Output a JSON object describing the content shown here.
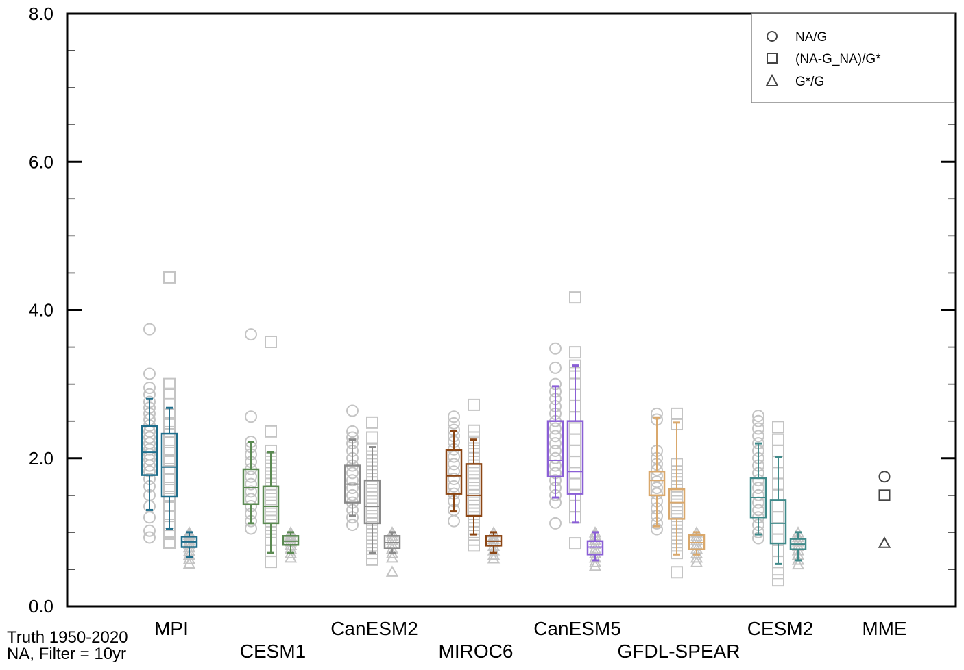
{
  "chart_data": {
    "type": "box",
    "title": "",
    "xlabel": "",
    "ylabel": "",
    "ylim": [
      0,
      8
    ],
    "yticks": [
      "0.0",
      "2.0",
      "4.0",
      "6.0",
      "8.0"
    ],
    "grid": false,
    "legend": {
      "location": "top-right",
      "entries": [
        {
          "marker": "circle",
          "label": "NA/G"
        },
        {
          "marker": "square",
          "label": "(NA-G_NA)/G*"
        },
        {
          "marker": "triangle",
          "label": "G*/G"
        }
      ]
    },
    "note": [
      "Truth 1950-2020",
      "NA, Filter = 10yr"
    ],
    "models": [
      {
        "name": "MPI",
        "color": "#1f6e8c",
        "label_row": "top",
        "boxes": [
          {
            "metric": "NA/G",
            "whisker_low": 1.3,
            "q1": 1.77,
            "median": 2.08,
            "q3": 2.43,
            "whisker_high": 2.8
          },
          {
            "metric": "(NA-G_NA)/G*",
            "whisker_low": 1.05,
            "q1": 1.48,
            "median": 1.88,
            "q3": 2.33,
            "whisker_high": 2.68
          },
          {
            "metric": "G*/G",
            "whisker_low": 0.67,
            "q1": 0.8,
            "median": 0.87,
            "q3": 0.94,
            "whisker_high": 1.0
          }
        ],
        "members": [
          [
            0.93,
            1.02,
            1.2,
            1.35,
            1.5,
            1.62,
            1.72,
            1.82,
            1.9,
            1.98,
            2.05,
            2.12,
            2.2,
            2.28,
            2.36,
            2.44,
            2.52,
            2.6,
            2.68,
            2.76,
            2.86,
            2.95,
            3.14,
            3.74
          ],
          [
            0.86,
            0.98,
            1.1,
            1.22,
            1.35,
            1.48,
            1.6,
            1.72,
            1.85,
            1.97,
            2.1,
            2.22,
            2.35,
            2.47,
            2.6,
            2.73,
            2.87,
            3.0,
            4.44
          ],
          [
            0.58,
            0.64,
            0.7,
            0.75,
            0.8,
            0.85,
            0.89,
            0.93,
            0.97,
            1.0
          ]
        ]
      },
      {
        "name": "CESM1",
        "color": "#5b8a52",
        "label_row": "bottom",
        "boxes": [
          {
            "metric": "NA/G",
            "whisker_low": 1.12,
            "q1": 1.38,
            "median": 1.6,
            "q3": 1.85,
            "whisker_high": 2.22
          },
          {
            "metric": "(NA-G_NA)/G*",
            "whisker_low": 0.72,
            "q1": 1.12,
            "median": 1.35,
            "q3": 1.62,
            "whisker_high": 2.08
          },
          {
            "metric": "G*/G",
            "whisker_low": 0.72,
            "q1": 0.83,
            "median": 0.88,
            "q3": 0.95,
            "whisker_high": 1.0
          }
        ],
        "members": [
          [
            1.05,
            1.15,
            1.25,
            1.35,
            1.45,
            1.55,
            1.65,
            1.75,
            1.85,
            1.95,
            2.05,
            2.15,
            2.22,
            2.56,
            3.67
          ],
          [
            0.6,
            0.75,
            0.9,
            1.0,
            1.1,
            1.2,
            1.3,
            1.4,
            1.5,
            1.6,
            1.7,
            1.8,
            1.9,
            2.0,
            2.1,
            2.36,
            3.57
          ],
          [
            0.66,
            0.72,
            0.78,
            0.83,
            0.88,
            0.92,
            0.96,
            1.0
          ]
        ]
      },
      {
        "name": "CanESM2",
        "color": "#8a8a8a",
        "label_row": "top",
        "boxes": [
          {
            "metric": "NA/G",
            "whisker_low": 1.22,
            "q1": 1.4,
            "median": 1.65,
            "q3": 1.9,
            "whisker_high": 2.25
          },
          {
            "metric": "(NA-G_NA)/G*",
            "whisker_low": 0.72,
            "q1": 1.12,
            "median": 1.35,
            "q3": 1.7,
            "whisker_high": 2.15
          },
          {
            "metric": "G*/G",
            "whisker_low": 0.72,
            "q1": 0.78,
            "median": 0.86,
            "q3": 0.95,
            "whisker_high": 1.0
          }
        ],
        "members": [
          [
            1.1,
            1.2,
            1.3,
            1.4,
            1.5,
            1.6,
            1.7,
            1.8,
            1.9,
            2.0,
            2.1,
            2.2,
            2.28,
            2.36,
            2.64
          ],
          [
            0.63,
            0.72,
            0.82,
            0.92,
            1.02,
            1.12,
            1.22,
            1.32,
            1.42,
            1.52,
            1.62,
            1.72,
            1.82,
            1.92,
            2.02,
            2.12,
            2.28,
            2.48
          ],
          [
            0.47,
            0.66,
            0.72,
            0.78,
            0.84,
            0.9,
            0.95,
            1.0
          ]
        ]
      },
      {
        "name": "MIROC6",
        "color": "#8b4513",
        "label_row": "bottom",
        "boxes": [
          {
            "metric": "NA/G",
            "whisker_low": 1.28,
            "q1": 1.52,
            "median": 1.76,
            "q3": 2.11,
            "whisker_high": 2.37
          },
          {
            "metric": "(NA-G_NA)/G*",
            "whisker_low": 0.97,
            "q1": 1.22,
            "median": 1.5,
            "q3": 1.92,
            "whisker_high": 2.25
          },
          {
            "metric": "G*/G",
            "whisker_low": 0.72,
            "q1": 0.82,
            "median": 0.88,
            "q3": 0.95,
            "whisker_high": 1.0
          }
        ],
        "members": [
          [
            1.15,
            1.3,
            1.42,
            1.52,
            1.62,
            1.72,
            1.82,
            1.92,
            2.02,
            2.12,
            2.22,
            2.3,
            2.38,
            2.47,
            2.56
          ],
          [
            0.82,
            0.9,
            1.0,
            1.1,
            1.2,
            1.3,
            1.4,
            1.5,
            1.6,
            1.7,
            1.8,
            1.9,
            2.0,
            2.1,
            2.2,
            2.28,
            2.37,
            2.72
          ],
          [
            0.65,
            0.7,
            0.76,
            0.82,
            0.87,
            0.91,
            0.95,
            1.0
          ]
        ]
      },
      {
        "name": "CanESM5",
        "color": "#8a5fd6",
        "label_row": "top",
        "boxes": [
          {
            "metric": "NA/G",
            "whisker_low": 1.47,
            "q1": 1.75,
            "median": 1.97,
            "q3": 2.5,
            "whisker_high": 2.97
          },
          {
            "metric": "(NA-G_NA)/G*",
            "whisker_low": 1.13,
            "q1": 1.52,
            "median": 1.82,
            "q3": 2.5,
            "whisker_high": 3.25
          },
          {
            "metric": "G*/G",
            "whisker_low": 0.62,
            "q1": 0.7,
            "median": 0.8,
            "q3": 0.88,
            "whisker_high": 1.0
          }
        ],
        "members": [
          [
            1.12,
            1.4,
            1.5,
            1.6,
            1.7,
            1.8,
            1.9,
            2.0,
            2.1,
            2.2,
            2.3,
            2.4,
            2.5,
            2.6,
            2.7,
            2.8,
            2.9,
            3.0,
            3.22,
            3.48
          ],
          [
            0.85,
            1.2,
            1.35,
            1.5,
            1.65,
            1.8,
            1.95,
            2.1,
            2.25,
            2.4,
            2.55,
            2.7,
            2.85,
            3.0,
            3.15,
            3.25,
            3.43,
            4.17
          ],
          [
            0.55,
            0.6,
            0.66,
            0.72,
            0.78,
            0.84,
            0.9,
            0.96,
            1.0
          ]
        ]
      },
      {
        "name": "GFDL-SPEAR",
        "color": "#d9a86c",
        "label_row": "bottom",
        "boxes": [
          {
            "metric": "NA/G",
            "whisker_low": 1.08,
            "q1": 1.5,
            "median": 1.7,
            "q3": 1.82,
            "whisker_high": 2.55
          },
          {
            "metric": "(NA-G_NA)/G*",
            "whisker_low": 0.7,
            "q1": 1.18,
            "median": 1.4,
            "q3": 1.58,
            "whisker_high": 2.48
          },
          {
            "metric": "G*/G",
            "whisker_low": 0.7,
            "q1": 0.77,
            "median": 0.86,
            "q3": 0.96,
            "whisker_high": 1.0
          }
        ],
        "members": [
          [
            1.04,
            1.12,
            1.22,
            1.32,
            1.42,
            1.52,
            1.6,
            1.68,
            1.76,
            1.84,
            1.92,
            2.0,
            2.1,
            2.52,
            2.6
          ],
          [
            0.46,
            0.72,
            0.82,
            0.92,
            1.02,
            1.12,
            1.22,
            1.32,
            1.42,
            1.52,
            1.62,
            1.72,
            1.82,
            1.92,
            2.46,
            2.6
          ],
          [
            0.6,
            0.66,
            0.72,
            0.78,
            0.84,
            0.9,
            0.95,
            1.0
          ]
        ]
      },
      {
        "name": "CESM2",
        "color": "#3f8a8a",
        "label_row": "top",
        "boxes": [
          {
            "metric": "NA/G",
            "whisker_low": 0.97,
            "q1": 1.2,
            "median": 1.47,
            "q3": 1.73,
            "whisker_high": 2.2
          },
          {
            "metric": "(NA-G_NA)/G*",
            "whisker_low": 0.57,
            "q1": 0.85,
            "median": 1.12,
            "q3": 1.43,
            "whisker_high": 2.02
          },
          {
            "metric": "G*/G",
            "whisker_low": 0.62,
            "q1": 0.77,
            "median": 0.84,
            "q3": 0.91,
            "whisker_high": 1.0
          }
        ],
        "members": [
          [
            0.92,
            1.0,
            1.1,
            1.2,
            1.3,
            1.4,
            1.5,
            1.6,
            1.7,
            1.8,
            1.9,
            2.0,
            2.1,
            2.2,
            2.3,
            2.4,
            2.5,
            2.57
          ],
          [
            0.35,
            0.45,
            0.6,
            0.75,
            0.9,
            1.05,
            1.2,
            1.35,
            1.5,
            1.65,
            1.8,
            1.95,
            2.1,
            2.25,
            2.42
          ],
          [
            0.57,
            0.63,
            0.7,
            0.76,
            0.82,
            0.88,
            0.94,
            1.0
          ]
        ]
      }
    ],
    "mme": {
      "name": "MME",
      "label_row": "top",
      "values": [
        {
          "metric": "NA/G",
          "marker": "circle",
          "value": 1.75
        },
        {
          "metric": "(NA-G_NA)/G*",
          "marker": "square",
          "value": 1.5
        },
        {
          "metric": "G*/G",
          "marker": "triangle",
          "value": 0.86
        }
      ]
    }
  }
}
